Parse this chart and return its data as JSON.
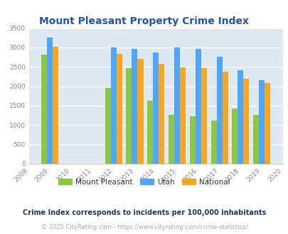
{
  "title": "Mount Pleasant Property Crime Index",
  "years": [
    2009,
    2012,
    2013,
    2014,
    2015,
    2016,
    2017,
    2018,
    2019
  ],
  "mount_pleasant": [
    2820,
    1950,
    2460,
    1630,
    1270,
    1220,
    1120,
    1420,
    1270
  ],
  "utah": [
    3250,
    3000,
    2960,
    2880,
    2990,
    2960,
    2770,
    2410,
    2150
  ],
  "national": [
    3020,
    2840,
    2710,
    2580,
    2480,
    2460,
    2370,
    2200,
    2090
  ],
  "color_mp": "#8dc63f",
  "color_utah": "#4da6ff",
  "color_national": "#f5a623",
  "xlim_min": 2008,
  "xlim_max": 2020,
  "ylim_min": 0,
  "ylim_max": 3500,
  "ytick_step": 500,
  "legend_labels": [
    "Mount Pleasant",
    "Utah",
    "National"
  ],
  "footnote1": "Crime Index corresponds to incidents per 100,000 inhabitants",
  "footnote2": "© 2025 CityRating.com - https://www.cityrating.com/crime-statistics/",
  "bg_color": "#dde8f0",
  "bar_width": 0.27,
  "title_color": "#2255aa",
  "footnote1_color": "#1a3a6a",
  "footnote2_color": "#aaaaaa",
  "legend_text_color": "#333333",
  "tick_color": "#888888"
}
